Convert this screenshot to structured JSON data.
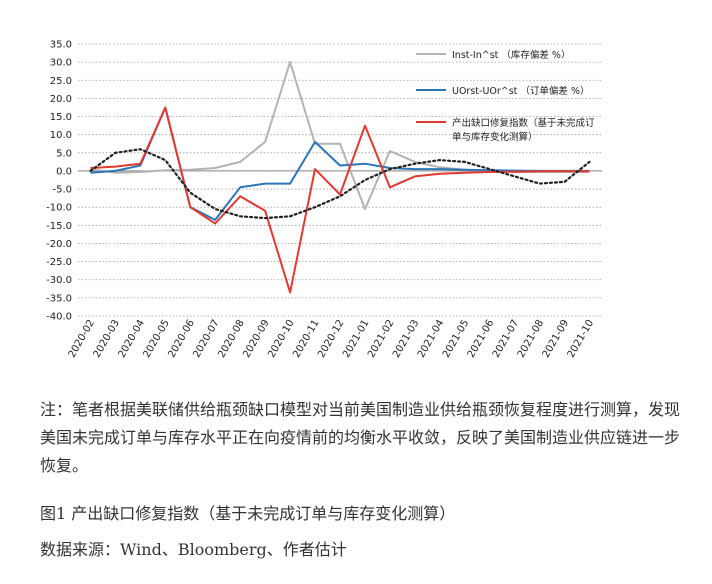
{
  "chart_data": {
    "type": "line",
    "categories": [
      "2020-02",
      "2020-03",
      "2020-04",
      "2020-05",
      "2020-06",
      "2020-07",
      "2020-08",
      "2020-09",
      "2020-10",
      "2020-11",
      "2020-12",
      "2021-01",
      "2021-02",
      "2021-03",
      "2021-04",
      "2021-05",
      "2021-06",
      "2021-07",
      "2021-08",
      "2021-09",
      "2021-10"
    ],
    "y_ticks": [
      "35.0",
      "30.0",
      "25.0",
      "20.0",
      "15.0",
      "10.0",
      "5.0",
      "0.0",
      "-5.0",
      "-10.0",
      "-15.0",
      "-20.0",
      "-25.0",
      "-30.0",
      "-35.0",
      "-40.0"
    ],
    "ylim": [
      -40,
      35
    ],
    "grid": true,
    "legend_position": "upper-right",
    "series": [
      {
        "name": "Inst-In^st （库存偏差 %）",
        "color": "#b3b3b3",
        "values": [
          0.5,
          -0.5,
          -0.3,
          0.2,
          0.3,
          0.8,
          2.5,
          8,
          30,
          7.5,
          7.5,
          -10.5,
          5.5,
          2.5,
          1,
          0.3,
          0,
          -0.3,
          -0.3,
          -0.3,
          -0.3
        ]
      },
      {
        "name": "UOrst-UOr^st （订单偏差 %）",
        "color": "#2e75b6",
        "values": [
          -0.5,
          0,
          1.5,
          17.5,
          -10,
          -13.5,
          -4.5,
          -3.5,
          -3.5,
          8,
          1.5,
          2,
          0.8,
          0.5,
          0.5,
          0.3,
          0.2,
          0.1,
          0,
          0,
          0
        ]
      },
      {
        "name": "产出缺口修复指数（基于未完成订单与库存变化测算）",
        "color": "#e03a32",
        "values": [
          0.8,
          1.2,
          2,
          17.5,
          -10,
          -14.5,
          -7,
          -11,
          -33.5,
          0.5,
          -6.5,
          12.5,
          -4.5,
          -1.5,
          -0.8,
          -0.5,
          -0.3,
          -0.2,
          -0.1,
          -0.1,
          -0.1
        ]
      },
      {
        "name": "",
        "color": "#222222",
        "style": "dotted",
        "values": [
          0,
          5,
          6,
          3,
          -6,
          -10.5,
          -12.5,
          -13,
          -12.5,
          -10,
          -7,
          -2.5,
          0.5,
          2,
          3,
          2.5,
          0.5,
          -1.5,
          -3.5,
          -3,
          2.5
        ]
      }
    ]
  },
  "note": "注：笔者根据美联储供给瓶颈缺口模型对当前美国制造业供给瓶颈恢复程度进行测算，发现美国未完成订单与库存水平正在向疫情前的均衡水平收敛，反映了美国制造业供应链进一步恢复。",
  "figure_title": "图1 产出缺口修复指数（基于未完成订单与库存变化测算）",
  "figure_source": "数据来源：Wind、Bloomberg、作者估计"
}
